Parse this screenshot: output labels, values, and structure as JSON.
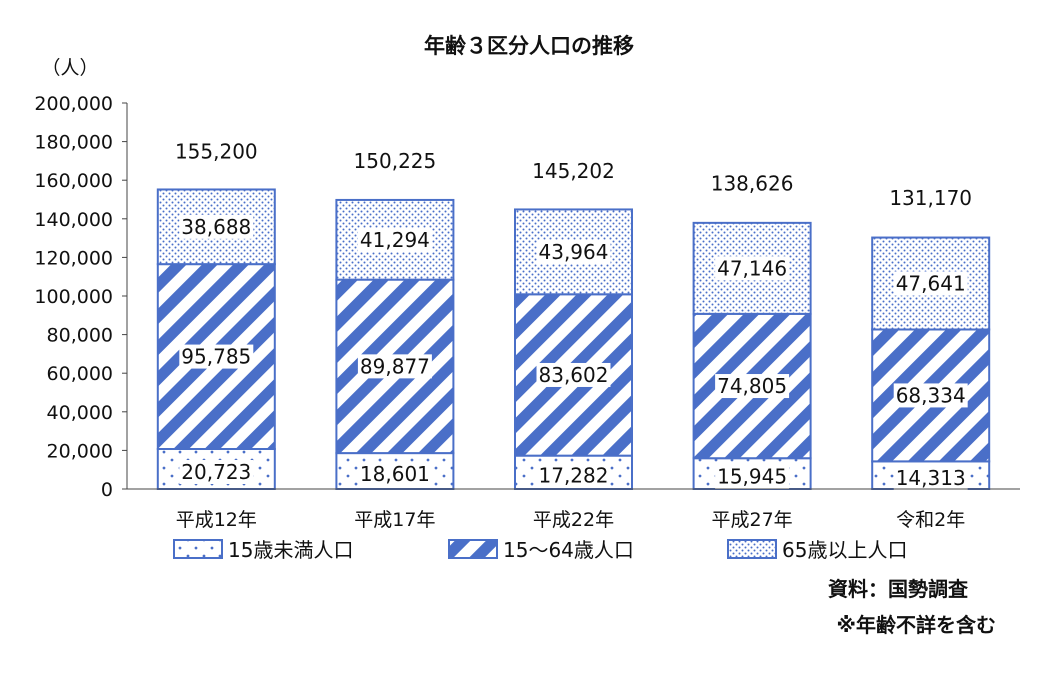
{
  "chart_data": {
    "type": "bar",
    "stacked": true,
    "title": "年齢３区分人口の推移",
    "ylabel": "（人）",
    "ylim": [
      0,
      200000
    ],
    "yticks": [
      "0",
      "20,000",
      "40,000",
      "60,000",
      "80,000",
      "100,000",
      "120,000",
      "140,000",
      "160,000",
      "180,000",
      "200,000"
    ],
    "categories": [
      "平成12年",
      "平成17年",
      "平成22年",
      "平成27年",
      "令和2年"
    ],
    "series": [
      {
        "name": "15歳未満人口",
        "values": [
          20723,
          18601,
          17282,
          15945,
          14313
        ],
        "labels": [
          "20,723",
          "18,601",
          "17,282",
          "15,945",
          "14,313"
        ],
        "pattern": "dots"
      },
      {
        "name": "15～64歳人口",
        "values": [
          95785,
          89877,
          83602,
          74805,
          68334
        ],
        "labels": [
          "95,785",
          "89,877",
          "83,602",
          "74,805",
          "68,334"
        ],
        "pattern": "diagonal"
      },
      {
        "name": "65歳以上人口",
        "values": [
          38688,
          41294,
          43964,
          47146,
          47641
        ],
        "labels": [
          "38,688",
          "41,294",
          "43,964",
          "47,146",
          "47,641"
        ],
        "pattern": "fine-dots"
      }
    ],
    "totals": [
      155200,
      150225,
      145202,
      138626,
      131170
    ],
    "total_labels": [
      "155,200",
      "150,225",
      "145,202",
      "138,626",
      "131,170"
    ],
    "legend_position": "bottom",
    "grid": false
  },
  "notes": {
    "source": "資料：国勢調査",
    "footnote": "※年齢不詳を含む"
  },
  "colors": {
    "accent": "#4a6fc8",
    "border": "#4a6fc8",
    "axis": "#444444"
  }
}
